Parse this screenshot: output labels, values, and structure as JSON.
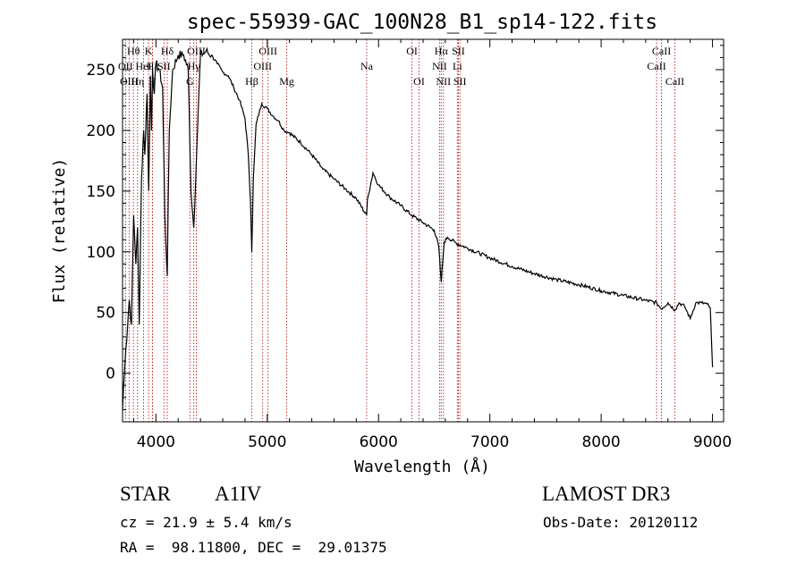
{
  "chart_data": {
    "type": "line",
    "title": "spec-55939-GAC_100N28_B1_sp14-122.fits",
    "xlabel": "Wavelength (Å)",
    "ylabel": "Flux (relative)",
    "xlim": [
      3700,
      9100
    ],
    "ylim": [
      -40,
      275
    ],
    "xticks": [
      4000,
      5000,
      6000,
      7000,
      8000,
      9000
    ],
    "xtick_labels": [
      "4000",
      "5000",
      "6000",
      "7000",
      "8000",
      "9000"
    ],
    "yticks": [
      0,
      50,
      100,
      150,
      200,
      250
    ],
    "ytick_labels": [
      "0",
      "50",
      "100",
      "150",
      "200",
      "250"
    ],
    "series": [
      {
        "name": "spectrum",
        "x": [
          3700,
          3710,
          3730,
          3760,
          3780,
          3800,
          3820,
          3835,
          3850,
          3870,
          3890,
          3900,
          3920,
          3935,
          3950,
          3960,
          3970,
          3985,
          4000,
          4030,
          4060,
          4080,
          4102,
          4120,
          4150,
          4200,
          4250,
          4290,
          4315,
          4340,
          4365,
          4400,
          4450,
          4500,
          4550,
          4600,
          4650,
          4700,
          4750,
          4800,
          4830,
          4850,
          4861,
          4875,
          4900,
          4950,
          5000,
          5050,
          5100,
          5150,
          5200,
          5300,
          5400,
          5500,
          5600,
          5700,
          5800,
          5893,
          5900,
          5950,
          6000,
          6100,
          6200,
          6300,
          6400,
          6500,
          6540,
          6563,
          6590,
          6620,
          6700,
          6800,
          7000,
          7200,
          7400,
          7600,
          7800,
          8000,
          8200,
          8400,
          8500,
          8540,
          8600,
          8662,
          8700,
          8750,
          8800,
          8850,
          8900,
          8950,
          8980,
          9000
        ],
        "values": [
          -30,
          -10,
          20,
          60,
          40,
          130,
          90,
          120,
          40,
          160,
          200,
          180,
          230,
          150,
          245,
          200,
          250,
          230,
          255,
          250,
          235,
          130,
          80,
          200,
          250,
          262,
          262,
          250,
          150,
          120,
          180,
          262,
          265,
          262,
          255,
          248,
          245,
          235,
          225,
          210,
          180,
          140,
          100,
          160,
          205,
          222,
          218,
          212,
          208,
          200,
          198,
          190,
          180,
          168,
          160,
          152,
          144,
          130,
          143,
          165,
          155,
          145,
          138,
          130,
          124,
          118,
          105,
          75,
          108,
          112,
          107,
          103,
          95,
          88,
          82,
          77,
          73,
          68,
          64,
          60,
          58,
          53,
          58,
          52,
          58,
          55,
          45,
          58,
          58,
          57,
          54,
          5
        ]
      }
    ],
    "line_markers": [
      {
        "label": "Hθ",
        "wavelength": 3798,
        "row": 0
      },
      {
        "label": "OII",
        "wavelength": 3727,
        "row": 1
      },
      {
        "label": "OIII",
        "wavelength": 3759,
        "row": 2
      },
      {
        "label": "Hη",
        "wavelength": 3835,
        "row": 2
      },
      {
        "label": "HeI",
        "wavelength": 3889,
        "row": 1
      },
      {
        "label": "K",
        "wavelength": 3934,
        "row": 0
      },
      {
        "label": "H",
        "wavelength": 3968,
        "row": 2
      },
      {
        "label": "Hε",
        "wavelength": 3970,
        "row": 1
      },
      {
        "label": "Hδ",
        "wavelength": 4102,
        "row": 0
      },
      {
        "label": "SII",
        "wavelength": 4072,
        "row": 1
      },
      {
        "label": "OIII",
        "wavelength": 4363,
        "row": 0
      },
      {
        "label": "Hγ",
        "wavelength": 4340,
        "row": 1
      },
      {
        "label": "G",
        "wavelength": 4305,
        "row": 2
      },
      {
        "label": "OIII",
        "wavelength": 5007,
        "row": 0
      },
      {
        "label": "OIII",
        "wavelength": 4959,
        "row": 1
      },
      {
        "label": "Hβ",
        "wavelength": 4861,
        "row": 2
      },
      {
        "label": "Mg",
        "wavelength": 5175,
        "row": 2
      },
      {
        "label": "Na",
        "wavelength": 5893,
        "row": 1
      },
      {
        "label": "OI",
        "wavelength": 6300,
        "row": 0
      },
      {
        "label": "OI",
        "wavelength": 6364,
        "row": 2
      },
      {
        "label": "Hα",
        "wavelength": 6563,
        "row": 0
      },
      {
        "label": "NII",
        "wavelength": 6548,
        "row": 1
      },
      {
        "label": "NII",
        "wavelength": 6583,
        "row": 2
      },
      {
        "label": "SII",
        "wavelength": 6717,
        "row": 0
      },
      {
        "label": "Li",
        "wavelength": 6708,
        "row": 1
      },
      {
        "label": "SII",
        "wavelength": 6731,
        "row": 2
      },
      {
        "label": "CaII",
        "wavelength": 8542,
        "row": 0
      },
      {
        "label": "CaII",
        "wavelength": 8498,
        "row": 1
      },
      {
        "label": "CaII",
        "wavelength": 8662,
        "row": 2
      }
    ],
    "colors": {
      "spectrum": "#000000",
      "markers": "#b22222",
      "axes": "#000000"
    }
  },
  "info": {
    "object_class": "STAR",
    "subclass": "A1IV",
    "survey": "LAMOST DR3",
    "cz": "cz = 21.9 ± 5.4 km/s",
    "obs_date": "Obs-Date: 20120112",
    "coords": "RA =  98.11800, DEC =  29.01375"
  }
}
